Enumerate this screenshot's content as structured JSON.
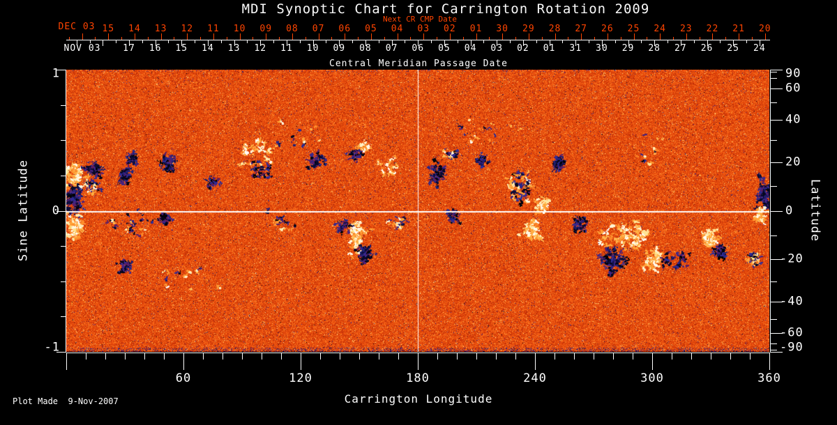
{
  "title": "MDI Synoptic Chart for Carrington Rotation 2009",
  "footer": "Plot Made  9-Nov-2007",
  "colors": {
    "accent_red": "#ff4400",
    "foreground": "#ffffff",
    "background": "#000000"
  },
  "top_axis_red": {
    "title": "Next CR CMP Date",
    "month_label": "DEC 03",
    "day_labels": [
      "15",
      "14",
      "13",
      "12",
      "11",
      "10",
      "09",
      "08",
      "07",
      "06",
      "05",
      "04",
      "03",
      "02",
      "01",
      "30",
      "29",
      "28",
      "27",
      "26",
      "25",
      "24",
      "23",
      "22",
      "21",
      "20"
    ]
  },
  "top_axis_white": {
    "title": "Central Meridian Passage Date",
    "month_label": "NOV 03",
    "day_labels": [
      "17",
      "16",
      "15",
      "14",
      "13",
      "12",
      "11",
      "10",
      "09",
      "08",
      "07",
      "06",
      "05",
      "04",
      "03",
      "02",
      "01",
      "31",
      "30",
      "29",
      "28",
      "27",
      "26",
      "25",
      "24"
    ]
  },
  "left_axis": {
    "title": "Sine Latitude",
    "tick_labels": [
      "1",
      "0",
      "-1"
    ],
    "tick_values": [
      1,
      0,
      -1
    ],
    "minor_step_sine": 0.25
  },
  "right_axis": {
    "title": "Latitude",
    "tick_values": [
      90,
      60,
      40,
      20,
      0,
      -20,
      -40,
      -60,
      -90
    ],
    "minor_step_deg": 10
  },
  "bottom_axis": {
    "title": "Carrington Longitude",
    "tick_values": [
      60,
      120,
      180,
      240,
      300,
      360
    ],
    "minor_step_deg": 10,
    "range": [
      0,
      360
    ]
  },
  "chart_data": {
    "type": "heatmap",
    "title": "MDI Synoptic Chart for Carrington Rotation 2009",
    "xlabel": "Carrington Longitude",
    "ylabel_left": "Sine Latitude",
    "ylabel_right": "Latitude",
    "x_range": [
      0,
      360
    ],
    "y_range_sine": [
      -1,
      1
    ],
    "y_range_latitude": [
      -90,
      90
    ],
    "grid": "crosshair only",
    "crosshair": {
      "longitude": 180,
      "sine_latitude": 0
    },
    "description": "Full-surface photospheric magnetic field map for Carrington rotation 2009; orange noise = quiet Sun, white/yellow = positive magnetic flux, black/dark blue = negative magnetic flux",
    "colormap_stops": [
      {
        "t": 0.0,
        "rgb": [
          0,
          0,
          0
        ]
      },
      {
        "t": 0.07,
        "rgb": [
          15,
          15,
          70
        ]
      },
      {
        "t": 0.14,
        "rgb": [
          45,
          45,
          155
        ]
      },
      {
        "t": 0.2,
        "rgb": [
          85,
          30,
          110
        ]
      },
      {
        "t": 0.28,
        "rgb": [
          140,
          25,
          22
        ]
      },
      {
        "t": 0.4,
        "rgb": [
          192,
          45,
          5
        ]
      },
      {
        "t": 0.55,
        "rgb": [
          232,
          75,
          12
        ]
      },
      {
        "t": 0.68,
        "rgb": [
          252,
          110,
          28
        ]
      },
      {
        "t": 0.8,
        "rgb": [
          255,
          168,
          58
        ]
      },
      {
        "t": 0.9,
        "rgb": [
          255,
          226,
          142
        ]
      },
      {
        "t": 1.0,
        "rgb": [
          255,
          255,
          255
        ]
      }
    ],
    "noise": {
      "mean": 0.55,
      "spread": 0.27,
      "pos_speckle": 0.03,
      "neg_speckle": 0.018,
      "black_speckle": 0.004
    },
    "active_regions": [
      {
        "lon": 3,
        "lat": 15,
        "dlon": 4,
        "dlat": 6,
        "polarity": "pos",
        "strength": 0.7
      },
      {
        "lon": 4,
        "lat": 4,
        "dlon": 5,
        "dlat": 8,
        "polarity": "neg",
        "strength": 1.0
      },
      {
        "lon": 4,
        "lat": -7,
        "dlon": 4,
        "dlat": 6,
        "polarity": "pos",
        "strength": 0.8
      },
      {
        "lon": 14,
        "lat": 17,
        "dlon": 5,
        "dlat": 4,
        "polarity": "neg",
        "strength": 0.6
      },
      {
        "lon": 13,
        "lat": 10,
        "dlon": 5,
        "dlat": 4,
        "polarity": "mixed",
        "strength": 0.4
      },
      {
        "lon": 30,
        "lat": -6,
        "dlon": 18,
        "dlat": 7,
        "polarity": "mixed",
        "strength": 0.25
      },
      {
        "lon": 30,
        "lat": 14,
        "dlon": 4,
        "dlat": 4,
        "polarity": "neg",
        "strength": 0.5
      },
      {
        "lon": 33,
        "lat": 22,
        "dlon": 3,
        "dlat": 3,
        "polarity": "neg",
        "strength": 0.4
      },
      {
        "lon": 50,
        "lat": -3,
        "dlon": 3,
        "dlat": 3,
        "polarity": "neg",
        "strength": 0.4
      },
      {
        "lon": 52,
        "lat": 20,
        "dlon": 4,
        "dlat": 4,
        "polarity": "neg",
        "strength": 0.55
      },
      {
        "lon": 30,
        "lat": -23,
        "dlon": 4,
        "dlat": 3,
        "polarity": "neg",
        "strength": 0.3
      },
      {
        "lon": 75,
        "lat": 12,
        "dlon": 3,
        "dlat": 3,
        "polarity": "neg",
        "strength": 0.3
      },
      {
        "lon": 97,
        "lat": 24,
        "dlon": 12,
        "dlat": 8,
        "polarity": "pos",
        "strength": 0.45
      },
      {
        "lon": 100,
        "lat": 17,
        "dlon": 6,
        "dlat": 4,
        "polarity": "neg",
        "strength": 0.3
      },
      {
        "lon": 110,
        "lat": -4,
        "dlon": 8,
        "dlat": 6,
        "polarity": "mixed",
        "strength": 0.2
      },
      {
        "lon": 128,
        "lat": 21,
        "dlon": 5,
        "dlat": 4,
        "polarity": "neg",
        "strength": 0.45
      },
      {
        "lon": 148,
        "lat": 24,
        "dlon": 4,
        "dlat": 3,
        "polarity": "neg",
        "strength": 0.4
      },
      {
        "lon": 152,
        "lat": 27,
        "dlon": 3,
        "dlat": 2,
        "polarity": "pos",
        "strength": 0.3
      },
      {
        "lon": 148,
        "lat": -11,
        "dlon": 4,
        "dlat": 7,
        "polarity": "pos",
        "strength": 0.85
      },
      {
        "lon": 153,
        "lat": -18,
        "dlon": 3,
        "dlat": 4,
        "polarity": "neg",
        "strength": 0.6
      },
      {
        "lon": 142,
        "lat": -6,
        "dlon": 4,
        "dlat": 3,
        "polarity": "neg",
        "strength": 0.35
      },
      {
        "lon": 165,
        "lat": 18,
        "dlon": 8,
        "dlat": 5,
        "polarity": "pos",
        "strength": 0.25
      },
      {
        "lon": 170,
        "lat": -4,
        "dlon": 7,
        "dlat": 5,
        "polarity": "mixed",
        "strength": 0.2
      },
      {
        "lon": 190,
        "lat": 16,
        "dlon": 5,
        "dlat": 6,
        "polarity": "neg",
        "strength": 0.6
      },
      {
        "lon": 197,
        "lat": 24,
        "dlon": 4,
        "dlat": 3,
        "polarity": "mixed",
        "strength": 0.4
      },
      {
        "lon": 198,
        "lat": -2,
        "dlon": 3,
        "dlat": 3,
        "polarity": "neg",
        "strength": 0.4
      },
      {
        "lon": 212,
        "lat": 21,
        "dlon": 4,
        "dlat": 3,
        "polarity": "neg",
        "strength": 0.35
      },
      {
        "lon": 232,
        "lat": 10,
        "dlon": 7,
        "dlat": 7,
        "polarity": "mixed",
        "strength": 1.0
      },
      {
        "lon": 238,
        "lat": -8,
        "dlon": 5,
        "dlat": 5,
        "polarity": "pos",
        "strength": 0.7
      },
      {
        "lon": 243,
        "lat": 2,
        "dlon": 4,
        "dlat": 4,
        "polarity": "pos",
        "strength": 0.5
      },
      {
        "lon": 252,
        "lat": 20,
        "dlon": 3,
        "dlat": 4,
        "polarity": "neg",
        "strength": 0.6
      },
      {
        "lon": 262,
        "lat": -5,
        "dlon": 4,
        "dlat": 4,
        "polarity": "neg",
        "strength": 0.4
      },
      {
        "lon": 285,
        "lat": -10,
        "dlon": 14,
        "dlat": 6,
        "polarity": "pos",
        "strength": 1.0
      },
      {
        "lon": 280,
        "lat": -21,
        "dlon": 8,
        "dlat": 7,
        "polarity": "neg",
        "strength": 0.9
      },
      {
        "lon": 300,
        "lat": -20,
        "dlon": 6,
        "dlat": 5,
        "polarity": "pos",
        "strength": 0.6
      },
      {
        "lon": 312,
        "lat": -20,
        "dlon": 9,
        "dlat": 5,
        "polarity": "neg",
        "strength": 0.4
      },
      {
        "lon": 330,
        "lat": -11,
        "dlon": 4,
        "dlat": 4,
        "polarity": "pos",
        "strength": 0.6
      },
      {
        "lon": 334,
        "lat": -17,
        "dlon": 4,
        "dlat": 3,
        "polarity": "neg",
        "strength": 0.35
      },
      {
        "lon": 357,
        "lat": 8,
        "dlon": 4,
        "dlat": 8,
        "polarity": "neg",
        "strength": 0.9
      },
      {
        "lon": 355,
        "lat": -2,
        "dlon": 3,
        "dlat": 4,
        "polarity": "pos",
        "strength": 0.5
      },
      {
        "lon": 352,
        "lat": -20,
        "dlon": 4,
        "dlat": 4,
        "polarity": "mixed",
        "strength": 0.5
      },
      {
        "lon": 120,
        "lat": 32,
        "dlon": 18,
        "dlat": 8,
        "polarity": "mixed",
        "strength": 0.15
      },
      {
        "lon": 60,
        "lat": -28,
        "dlon": 20,
        "dlat": 9,
        "polarity": "mixed",
        "strength": 0.12
      },
      {
        "lon": 215,
        "lat": 35,
        "dlon": 22,
        "dlat": 9,
        "polarity": "mixed",
        "strength": 0.12
      },
      {
        "lon": 295,
        "lat": 25,
        "dlon": 18,
        "dlat": 9,
        "polarity": "mixed",
        "strength": 0.1
      }
    ]
  }
}
